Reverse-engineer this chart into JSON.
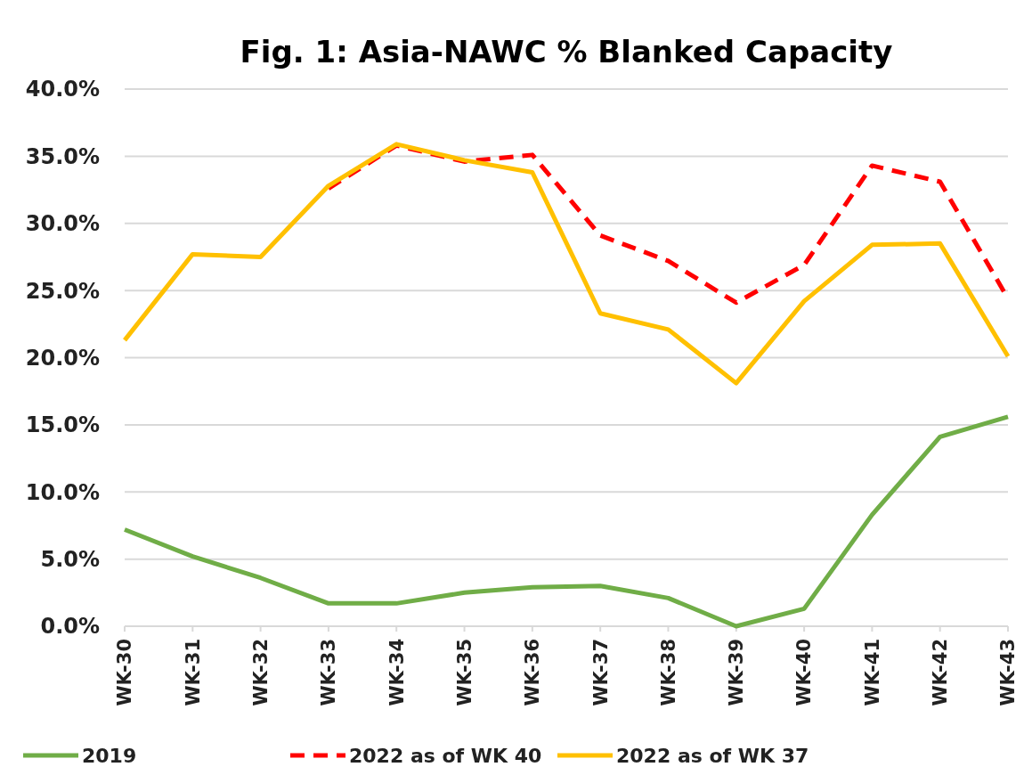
{
  "chart_data": {
    "type": "line",
    "title": "Fig. 1: Asia-NAWC % Blanked Capacity",
    "categories": [
      "WK-30",
      "WK-31",
      "WK-32",
      "WK-33",
      "WK-34",
      "WK-35",
      "WK-36",
      "WK-37",
      "WK-38",
      "WK-39",
      "WK-40",
      "WK-41",
      "WK-42",
      "WK-43"
    ],
    "series": [
      {
        "name": "2019",
        "color": "#70ad47",
        "line_style": "solid",
        "values": [
          7.2,
          5.2,
          3.6,
          1.7,
          1.7,
          2.5,
          2.9,
          3.0,
          2.1,
          0,
          1.3,
          8.3,
          14.1,
          15.6
        ]
      },
      {
        "name": "2022 as of WK 40",
        "color": "#ff0000",
        "line_style": "dashed",
        "values": [
          null,
          null,
          null,
          32.6,
          35.8,
          34.6,
          35.1,
          29.1,
          27.2,
          24.1,
          26.9,
          34.3,
          33.1,
          24.4
        ]
      },
      {
        "name": "2022 as of WK 37",
        "color": "#ffc000",
        "line_style": "solid",
        "values": [
          21.3,
          27.7,
          27.5,
          32.8,
          35.9,
          34.7,
          33.8,
          23.3,
          22.1,
          18.1,
          24.2,
          28.4,
          28.5,
          20.1
        ]
      }
    ],
    "ylim": [
      0,
      40
    ],
    "yticks": [
      {
        "value": 0,
        "label": "0.0%"
      },
      {
        "value": 5,
        "label": "5.0%"
      },
      {
        "value": 10,
        "label": "10.0%"
      },
      {
        "value": 15,
        "label": "15.0%"
      },
      {
        "value": 20,
        "label": "20.0%"
      },
      {
        "value": 25,
        "label": "25.0%"
      },
      {
        "value": 30,
        "label": "30.0%"
      },
      {
        "value": 35,
        "label": "35.0%"
      },
      {
        "value": 40,
        "label": "40.0%"
      }
    ],
    "grid": "y",
    "legend": "bottom",
    "marker": "none"
  }
}
